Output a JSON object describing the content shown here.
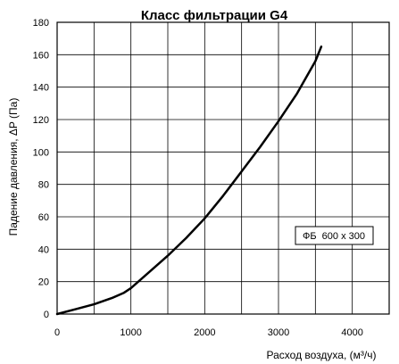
{
  "chart_data": {
    "type": "line",
    "title": "Класс фильтрации G4",
    "xlabel": "Расход воздуха, (м³/ч)",
    "ylabel": "Падение давления, ΔP (Па)",
    "xlim": [
      0,
      4500
    ],
    "ylim": [
      0,
      180
    ],
    "x_ticks": [
      0,
      1000,
      2000,
      3000,
      4000
    ],
    "y_ticks": [
      0,
      20,
      40,
      60,
      80,
      100,
      120,
      140,
      160,
      180
    ],
    "x_grid_step": 500,
    "y_grid_step": 20,
    "grid": true,
    "legend_position": "right",
    "series": [
      {
        "name": "ФБ  600 x 300",
        "x": [
          0,
          250,
          500,
          750,
          900,
          1000,
          1250,
          1500,
          1750,
          2000,
          2250,
          2500,
          2750,
          3000,
          3250,
          3500,
          3580
        ],
        "y": [
          0,
          3,
          6,
          10,
          13,
          16,
          26,
          36,
          47,
          59,
          73,
          88,
          103,
          119,
          136,
          156,
          165
        ]
      }
    ],
    "line_color": "#000000"
  }
}
